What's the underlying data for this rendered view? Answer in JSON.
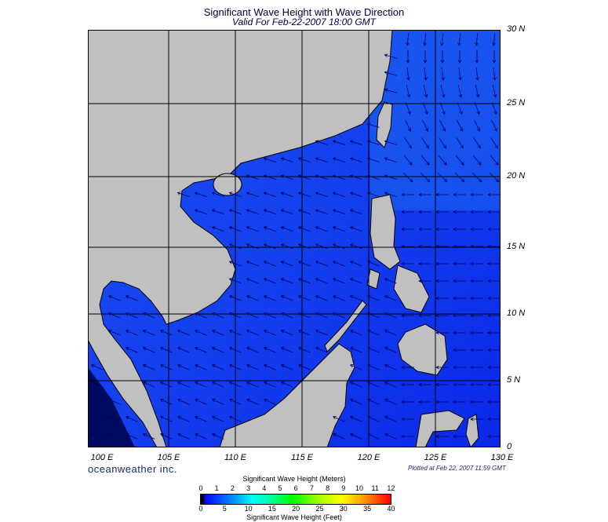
{
  "header": {
    "title": "Significant Wave Height with Wave Direction",
    "subtitle": "Valid For Feb-22-2007 18:00 GMT"
  },
  "map": {
    "region": "South China Sea",
    "water_color": "#1a3cf0",
    "land_color": "#c0c0c0",
    "arrow_color": "#000060",
    "lat_labels": [
      "30 N",
      "25 N",
      "20 N",
      "15 N",
      "10 N",
      "5 N",
      "0"
    ],
    "lon_labels": [
      "100 E",
      "105 E",
      "110 E",
      "115 E",
      "120 E",
      "125 E",
      "130 E"
    ]
  },
  "footer": {
    "logo": "oceanweather inc.",
    "plotted": "Plotted at Feb 22, 2007 11:59 GMT"
  },
  "colorbar": {
    "title_meters": "Significant Wave Height (Meters)",
    "title_feet": "Significant Wave Height (Feet)",
    "meters_ticks": [
      "0",
      "1",
      "2",
      "3",
      "4",
      "5",
      "6",
      "7",
      "8",
      "9",
      "10",
      "11",
      "12"
    ],
    "feet_ticks": [
      "0",
      "5",
      "10",
      "15",
      "20",
      "25",
      "30",
      "35",
      "40"
    ],
    "colors": [
      "#000000",
      "#0000ff",
      "#00ffff",
      "#00ff00",
      "#ffff00",
      "#ff0000"
    ]
  }
}
